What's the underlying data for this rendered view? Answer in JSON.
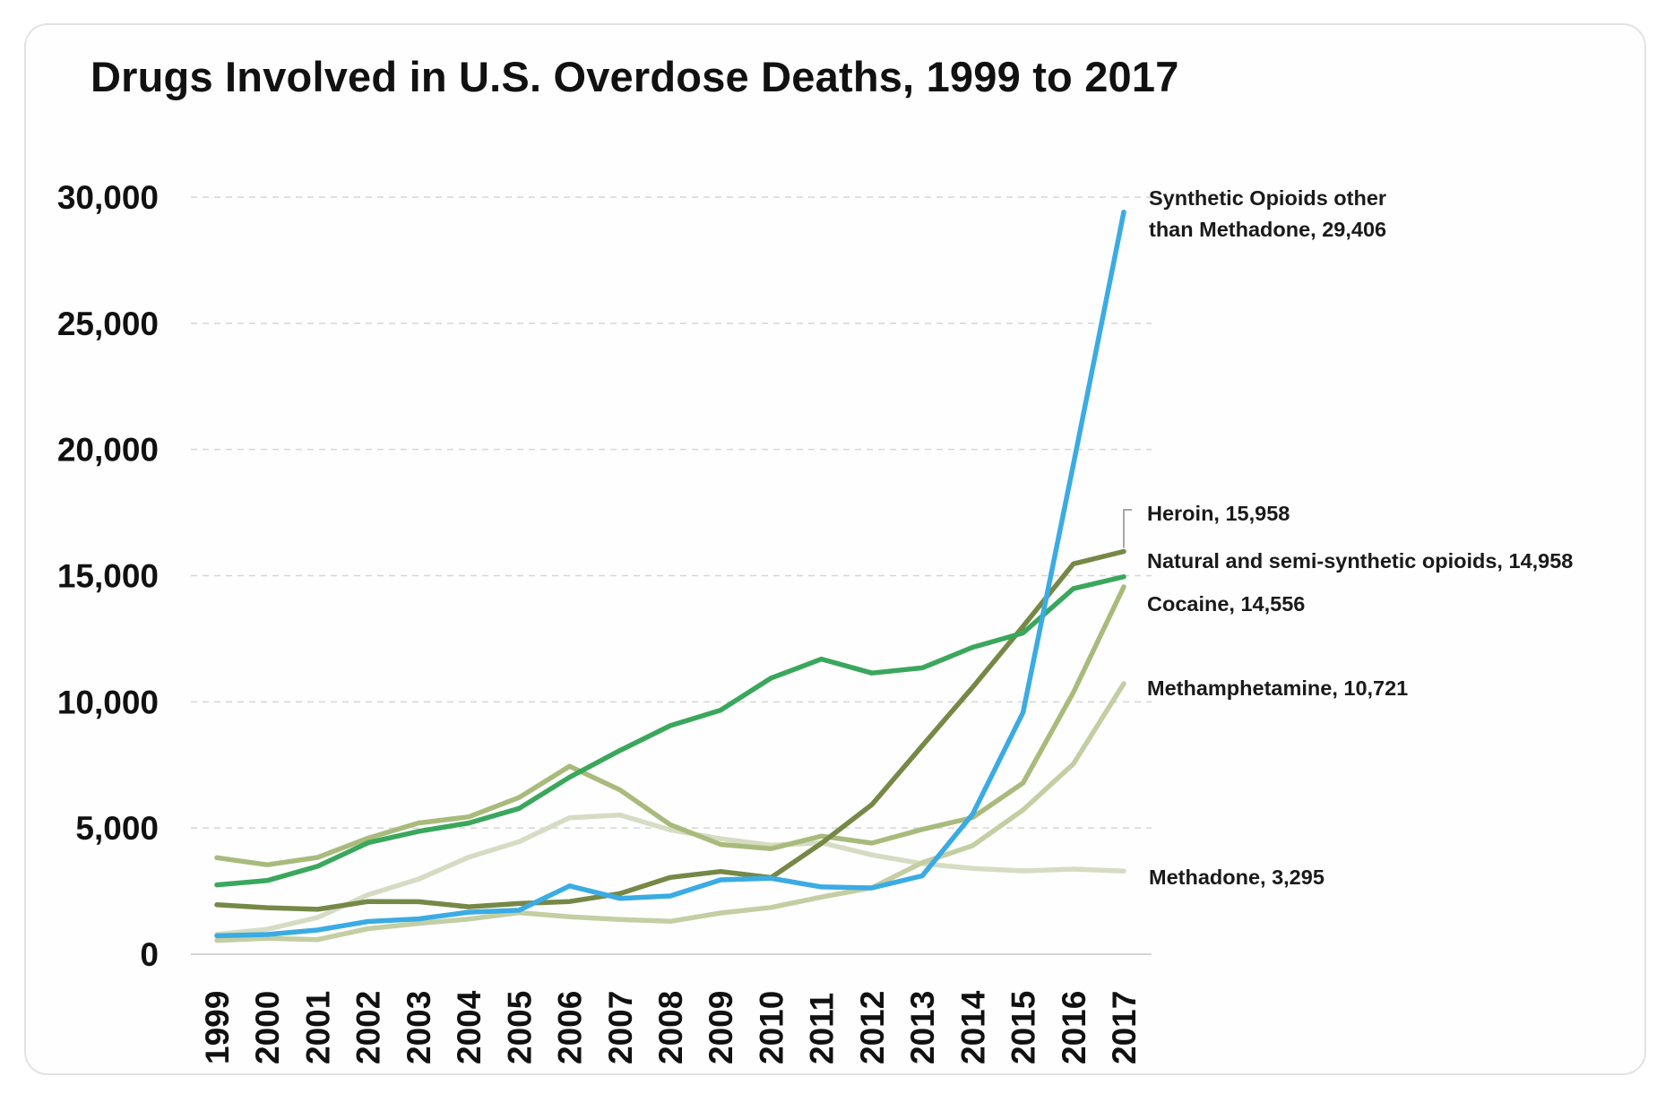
{
  "chart_data": {
    "type": "line",
    "title": "Drugs Involved in U.S. Overdose Deaths, 1999 to 2017",
    "xlabel": "",
    "ylabel": "",
    "ylim": [
      0,
      30000
    ],
    "yticks": [
      0,
      5000,
      10000,
      15000,
      20000,
      25000,
      30000
    ],
    "ytick_labels": [
      "0",
      "5,000",
      "10,000",
      "15,000",
      "20,000",
      "25,000",
      "30,000"
    ],
    "grid": "horizontal-dashed",
    "legend": "direct-labels-right",
    "categories": [
      "1999",
      "2000",
      "2001",
      "2002",
      "2003",
      "2004",
      "2005",
      "2006",
      "2007",
      "2008",
      "2009",
      "2010",
      "2011",
      "2012",
      "2013",
      "2014",
      "2015",
      "2016",
      "2017"
    ],
    "series": [
      {
        "name": "Methadone",
        "label_lines": [
          "Methadone, 3,295"
        ],
        "color": "#d6dcc3",
        "values": [
          784,
          988,
          1456,
          2358,
          2972,
          3845,
          4460,
          5406,
          5518,
          4924,
          4577,
          4318,
          4418,
          3932,
          3591,
          3400,
          3301,
          3373,
          3295
        ]
      },
      {
        "name": "Methamphetamine",
        "label_lines": [
          "Methamphetamine, 10,721"
        ],
        "color": "#c3cea3",
        "values": [
          547,
          627,
          578,
          1011,
          1216,
          1392,
          1648,
          1480,
          1378,
          1302,
          1632,
          1854,
          2266,
          2635,
          3627,
          4298,
          5716,
          7542,
          10721
        ]
      },
      {
        "name": "Cocaine",
        "label_lines": [
          "Cocaine, 14,556"
        ],
        "color": "#a9bb7c",
        "values": [
          3822,
          3544,
          3833,
          4599,
          5199,
          5443,
          6208,
          7448,
          6512,
          5129,
          4350,
          4183,
          4681,
          4404,
          4944,
          5415,
          6784,
          10375,
          14556
        ]
      },
      {
        "name": "Heroin",
        "label_lines": [
          "Heroin, 15,958"
        ],
        "color": "#768846",
        "values": [
          1960,
          1842,
          1779,
          2089,
          2080,
          1878,
          2009,
          2088,
          2399,
          3041,
          3278,
          3036,
          4397,
          5925,
          8257,
          10574,
          12989,
          15469,
          15958
        ]
      },
      {
        "name": "Natural and semi-synthetic opioids",
        "label_lines": [
          "Natural and semi-synthetic opioids, 14,958"
        ],
        "color": "#3aa75c",
        "values": [
          2749,
          2917,
          3484,
          4416,
          4867,
          5197,
          5776,
          7017,
          8074,
          9056,
          9672,
          10943,
          11693,
          11140,
          11346,
          12159,
          12727,
          14487,
          14958
        ]
      },
      {
        "name": "Synthetic Opioids other than Methadone",
        "label_lines": [
          "Synthetic Opioids other",
          "than Methadone, 29,406"
        ],
        "color": "#3babe3",
        "values": [
          730,
          782,
          957,
          1295,
          1400,
          1664,
          1742,
          2707,
          2213,
          2306,
          2946,
          3007,
          2666,
          2628,
          3105,
          5544,
          9580,
          19413,
          29406
        ]
      }
    ]
  }
}
